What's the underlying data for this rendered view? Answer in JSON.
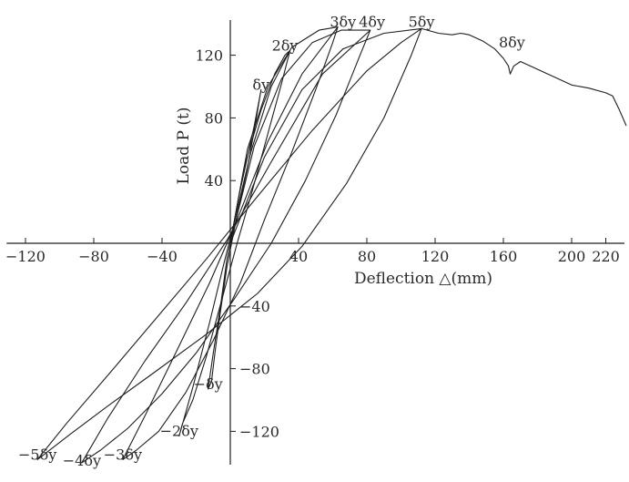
{
  "chart_data": {
    "type": "line",
    "title": "",
    "xlabel": "Deflection △(mm)",
    "ylabel": "Load P (t)",
    "xlim": [
      -130,
      232
    ],
    "ylim": [
      -145,
      145
    ],
    "x_ticks": [
      {
        "value": -120,
        "label": "−120"
      },
      {
        "value": -80,
        "label": "−80"
      },
      {
        "value": -40,
        "label": "−40"
      },
      {
        "value": 40,
        "label": "40"
      },
      {
        "value": 80,
        "label": "80"
      },
      {
        "value": 120,
        "label": "120"
      },
      {
        "value": 160,
        "label": "160"
      },
      {
        "value": 200,
        "label": "200"
      },
      {
        "value": 220,
        "label": "220"
      }
    ],
    "y_ticks": [
      {
        "value": 120,
        "label": "120"
      },
      {
        "value": 80,
        "label": "80"
      },
      {
        "value": 40,
        "label": "40"
      },
      {
        "value": -40,
        "label": "−40"
      },
      {
        "value": -80,
        "label": "−80"
      },
      {
        "value": -120,
        "label": "−120"
      }
    ],
    "annotations": [
      {
        "text": "δy",
        "x": 18,
        "y": 98
      },
      {
        "text": "2δy",
        "x": 32,
        "y": 123
      },
      {
        "text": "3δy",
        "x": 66,
        "y": 138
      },
      {
        "text": "4δy",
        "x": 83,
        "y": 138
      },
      {
        "text": "5δy",
        "x": 112,
        "y": 138
      },
      {
        "text": "8δy",
        "x": 165,
        "y": 125
      },
      {
        "text": "−δy",
        "x": -13,
        "y": -93
      },
      {
        "text": "−2δy",
        "x": -30,
        "y": -123
      },
      {
        "text": "−3δy",
        "x": -63,
        "y": -138
      },
      {
        "text": "−4δy",
        "x": -87,
        "y": -142
      },
      {
        "text": "−5δy",
        "x": -113,
        "y": -138
      }
    ],
    "series": [
      {
        "values": [
          [
            0,
            0
          ],
          [
            5,
            30
          ],
          [
            10,
            55
          ],
          [
            14,
            75
          ],
          [
            17,
            92
          ],
          [
            18,
            98
          ],
          [
            14,
            72
          ],
          [
            10,
            48
          ],
          [
            4,
            18
          ],
          [
            -2,
            -15
          ],
          [
            -6,
            -45
          ],
          [
            -9,
            -70
          ],
          [
            -11,
            -88
          ],
          [
            -13,
            -93
          ],
          [
            -10,
            -70
          ],
          [
            -6,
            -42
          ],
          [
            -2,
            -10
          ],
          [
            0,
            0
          ]
        ]
      },
      {
        "values": [
          [
            0,
            0
          ],
          [
            8,
            48
          ],
          [
            18,
            85
          ],
          [
            26,
            108
          ],
          [
            32,
            120
          ],
          [
            35,
            123
          ],
          [
            30,
            102
          ],
          [
            22,
            70
          ],
          [
            12,
            30
          ],
          [
            4,
            0
          ],
          [
            -6,
            -40
          ],
          [
            -14,
            -72
          ],
          [
            -22,
            -100
          ],
          [
            -28,
            -115
          ],
          [
            -30,
            -123
          ],
          [
            -22,
            -92
          ],
          [
            -12,
            -50
          ],
          [
            -4,
            -14
          ],
          [
            2,
            12
          ],
          [
            12,
            58
          ],
          [
            24,
            100
          ],
          [
            35,
            123
          ]
        ]
      },
      {
        "values": [
          [
            0,
            0
          ],
          [
            10,
            60
          ],
          [
            22,
            100
          ],
          [
            36,
            125
          ],
          [
            52,
            136
          ],
          [
            63,
            138
          ],
          [
            60,
            128
          ],
          [
            50,
            98
          ],
          [
            36,
            58
          ],
          [
            20,
            15
          ],
          [
            6,
            -25
          ],
          [
            -10,
            -62
          ],
          [
            -26,
            -95
          ],
          [
            -42,
            -120
          ],
          [
            -55,
            -132
          ],
          [
            -63,
            -138
          ],
          [
            -50,
            -110
          ],
          [
            -32,
            -70
          ],
          [
            -12,
            -25
          ],
          [
            4,
            15
          ],
          [
            22,
            65
          ],
          [
            42,
            108
          ],
          [
            63,
            138
          ]
        ]
      },
      {
        "values": [
          [
            0,
            0
          ],
          [
            14,
            62
          ],
          [
            30,
            105
          ],
          [
            48,
            128
          ],
          [
            65,
            136
          ],
          [
            82,
            136
          ],
          [
            76,
            120
          ],
          [
            62,
            82
          ],
          [
            44,
            40
          ],
          [
            24,
            0
          ],
          [
            2,
            -36
          ],
          [
            -20,
            -70
          ],
          [
            -40,
            -96
          ],
          [
            -60,
            -118
          ],
          [
            -76,
            -132
          ],
          [
            -87,
            -140
          ],
          [
            -72,
            -112
          ],
          [
            -50,
            -75
          ],
          [
            -26,
            -38
          ],
          [
            -2,
            2
          ],
          [
            24,
            52
          ],
          [
            54,
            108
          ],
          [
            82,
            136
          ]
        ]
      },
      {
        "values": [
          [
            0,
            0
          ],
          [
            20,
            55
          ],
          [
            42,
            98
          ],
          [
            66,
            124
          ],
          [
            90,
            134
          ],
          [
            112,
            137
          ],
          [
            106,
            120
          ],
          [
            90,
            80
          ],
          [
            68,
            38
          ],
          [
            42,
            -2
          ],
          [
            16,
            -32
          ],
          [
            -14,
            -58
          ],
          [
            -44,
            -82
          ],
          [
            -72,
            -104
          ],
          [
            -94,
            -122
          ],
          [
            -113,
            -138
          ],
          [
            -96,
            -115
          ],
          [
            -70,
            -82
          ],
          [
            -42,
            -46
          ],
          [
            -14,
            -10
          ],
          [
            16,
            30
          ],
          [
            48,
            72
          ],
          [
            80,
            110
          ],
          [
            100,
            128
          ],
          [
            112,
            137
          ]
        ]
      },
      {
        "values": [
          [
            112,
            137
          ],
          [
            122,
            134
          ],
          [
            130,
            133
          ],
          [
            135,
            134
          ],
          [
            140,
            133
          ],
          [
            148,
            129
          ],
          [
            155,
            124
          ],
          [
            160,
            118
          ],
          [
            163,
            113
          ],
          [
            164,
            108
          ],
          [
            166,
            113
          ],
          [
            170,
            116
          ],
          [
            176,
            113
          ],
          [
            184,
            109
          ],
          [
            192,
            105
          ],
          [
            200,
            101
          ],
          [
            210,
            99
          ],
          [
            220,
            96
          ],
          [
            224,
            94
          ],
          [
            228,
            85
          ],
          [
            232,
            75
          ]
        ]
      }
    ],
    "grid": false,
    "legend": "none"
  }
}
